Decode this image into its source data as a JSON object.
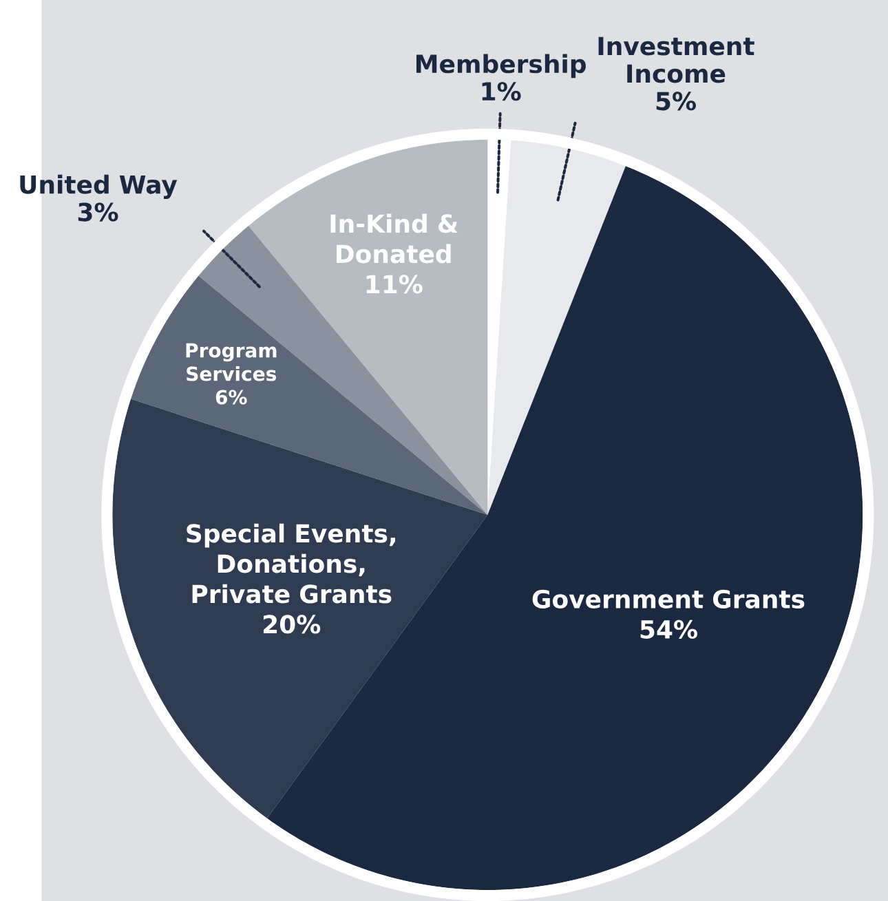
{
  "chart_data": {
    "type": "pie",
    "categories": [
      "Membership",
      "Investment Income",
      "Government Grants",
      "Special Events, Donations, Private Grants",
      "Program Services",
      "United Way",
      "In-Kind & Donated"
    ],
    "values": [
      1,
      5,
      54,
      20,
      6,
      3,
      11
    ],
    "value_labels": [
      "1%",
      "5%",
      "54%",
      "20%",
      "6%",
      "3%",
      "11%"
    ],
    "colors": [
      "#ffffff",
      "#e8e9ec",
      "#1a2840",
      "#2e3b50",
      "#5c6778",
      "#8a929d",
      "#b7bbc2"
    ]
  }
}
